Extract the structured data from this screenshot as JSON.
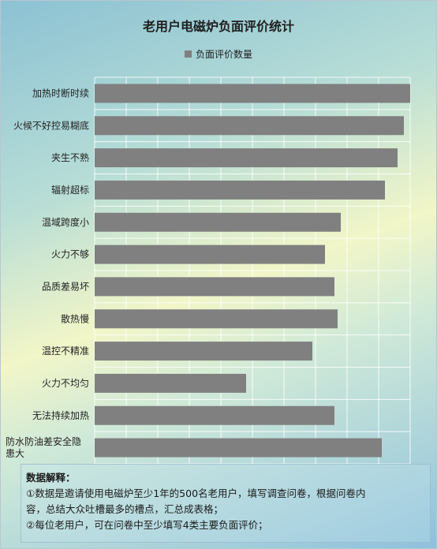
{
  "chart_data": {
    "type": "bar",
    "orientation": "horizontal",
    "title": "老用户电磁炉负面评价统计",
    "legend": "负面评价数量",
    "legend_position": "top",
    "color": "#808080",
    "grid": true,
    "xlim": [
      0,
      100
    ],
    "categories": [
      "加热时断时续",
      "火候不好控易糊底",
      "夹生不熟",
      "辐射超标",
      "温域跨度小",
      "火力不够",
      "品质差易坏",
      "散热慢",
      "温控不精准",
      "火力不均匀",
      "无法持续加热",
      "防水防油差安全隐患大"
    ],
    "category_lines": [
      [
        "加热时断时续"
      ],
      [
        "火候不好控易糊底"
      ],
      [
        "夹生不熟"
      ],
      [
        "辐射超标"
      ],
      [
        "温域跨度小"
      ],
      [
        "火力不够"
      ],
      [
        "品质差易坏"
      ],
      [
        "散热慢"
      ],
      [
        "温控不精准"
      ],
      [
        "火力不均匀"
      ],
      [
        "无法持续加热"
      ],
      [
        "防水防油差安全隐",
        "患大"
      ]
    ],
    "values": [
      100,
      98,
      96,
      92,
      78,
      73,
      76,
      77,
      69,
      48,
      76,
      91
    ]
  },
  "note": {
    "title": "数据解释：",
    "line1": "①数据是邀请使用电磁炉至少1年的500名老用户，填写调查问卷，根据问卷内",
    "line2": "容，总结大众吐槽最多的槽点，汇总成表格；",
    "line3": "②每位老用户，可在问卷中至少填写4类主要负面评价；"
  }
}
